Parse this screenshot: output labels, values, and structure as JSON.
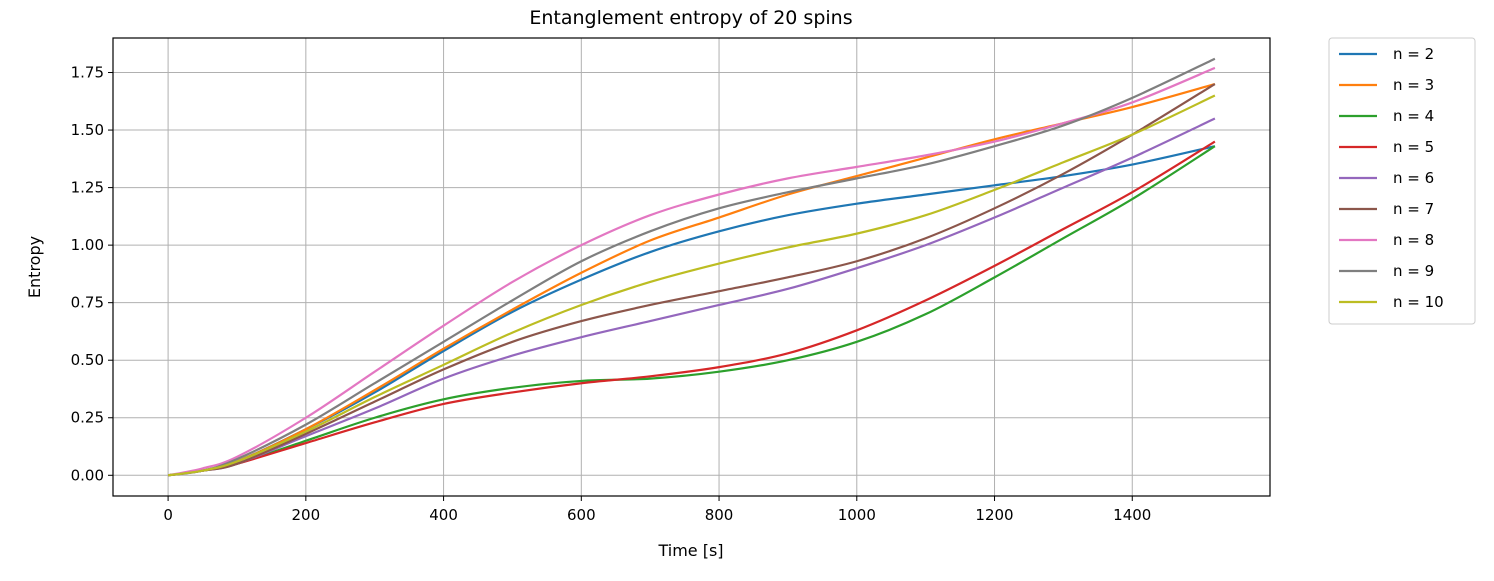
{
  "chart_data": {
    "type": "line",
    "title": "Entanglement entropy of 20 spins",
    "xlabel": "Time [s]",
    "ylabel": "Entropy",
    "xlim": [
      -80,
      1600
    ],
    "ylim": [
      -0.09,
      1.9
    ],
    "xticks": [
      0,
      200,
      400,
      600,
      800,
      1000,
      1200,
      1400
    ],
    "yticks": [
      0.0,
      0.25,
      0.5,
      0.75,
      1.0,
      1.25,
      1.5,
      1.75
    ],
    "xtick_labels": [
      "0",
      "200",
      "400",
      "600",
      "800",
      "1000",
      "1200",
      "1400"
    ],
    "ytick_labels": [
      "0.00",
      "0.25",
      "0.50",
      "0.75",
      "1.00",
      "1.25",
      "1.50",
      "1.75"
    ],
    "grid": true,
    "legend_position": "outside-right-top",
    "x": [
      0,
      50,
      100,
      200,
      300,
      400,
      500,
      600,
      700,
      800,
      900,
      1000,
      1100,
      1200,
      1300,
      1400,
      1520
    ],
    "series": [
      {
        "name": "n = 2",
        "color": "#1f77b4",
        "values": [
          0.0,
          0.02,
          0.06,
          0.2,
          0.36,
          0.54,
          0.71,
          0.85,
          0.97,
          1.06,
          1.13,
          1.18,
          1.22,
          1.26,
          1.3,
          1.35,
          1.43
        ]
      },
      {
        "name": "n = 3",
        "color": "#ff7f0e",
        "values": [
          0.0,
          0.02,
          0.06,
          0.2,
          0.37,
          0.55,
          0.72,
          0.88,
          1.02,
          1.12,
          1.22,
          1.3,
          1.38,
          1.46,
          1.53,
          1.6,
          1.7
        ]
      },
      {
        "name": "n = 4",
        "color": "#2ca02c",
        "values": [
          0.0,
          0.02,
          0.05,
          0.15,
          0.25,
          0.33,
          0.38,
          0.41,
          0.42,
          0.45,
          0.5,
          0.58,
          0.7,
          0.86,
          1.03,
          1.2,
          1.43
        ]
      },
      {
        "name": "n = 5",
        "color": "#d62728",
        "values": [
          0.0,
          0.02,
          0.05,
          0.14,
          0.23,
          0.31,
          0.36,
          0.4,
          0.43,
          0.47,
          0.53,
          0.63,
          0.76,
          0.91,
          1.07,
          1.23,
          1.45
        ]
      },
      {
        "name": "n = 6",
        "color": "#9467bd",
        "values": [
          0.0,
          0.02,
          0.05,
          0.17,
          0.29,
          0.42,
          0.52,
          0.6,
          0.67,
          0.74,
          0.81,
          0.9,
          1.0,
          1.12,
          1.25,
          1.38,
          1.55
        ]
      },
      {
        "name": "n = 7",
        "color": "#8c564b",
        "values": [
          0.0,
          0.02,
          0.05,
          0.18,
          0.32,
          0.46,
          0.58,
          0.67,
          0.74,
          0.8,
          0.86,
          0.93,
          1.03,
          1.16,
          1.31,
          1.48,
          1.7
        ]
      },
      {
        "name": "n = 8",
        "color": "#e377c2",
        "values": [
          0.0,
          0.03,
          0.08,
          0.25,
          0.45,
          0.65,
          0.84,
          1.0,
          1.13,
          1.22,
          1.29,
          1.34,
          1.39,
          1.45,
          1.53,
          1.62,
          1.77
        ]
      },
      {
        "name": "n = 9",
        "color": "#7f7f7f",
        "values": [
          0.0,
          0.02,
          0.07,
          0.22,
          0.4,
          0.58,
          0.76,
          0.93,
          1.06,
          1.16,
          1.23,
          1.29,
          1.35,
          1.43,
          1.52,
          1.64,
          1.81
        ]
      },
      {
        "name": "n = 10",
        "color": "#bcbd22",
        "values": [
          0.0,
          0.02,
          0.06,
          0.19,
          0.34,
          0.48,
          0.62,
          0.74,
          0.84,
          0.92,
          0.99,
          1.05,
          1.13,
          1.24,
          1.36,
          1.48,
          1.65
        ]
      }
    ]
  }
}
